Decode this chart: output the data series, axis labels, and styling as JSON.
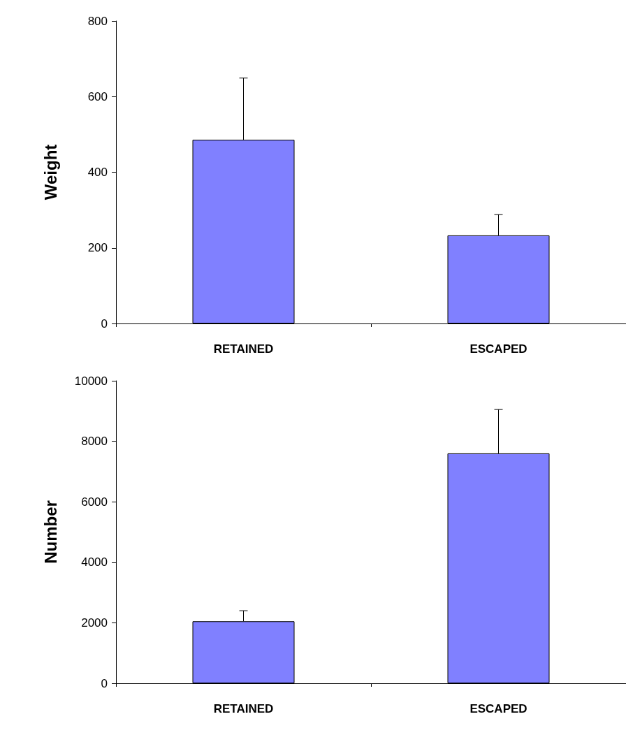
{
  "chart_data": [
    {
      "type": "bar",
      "ylabel": "Weight",
      "categories": [
        "RETAINED",
        "ESCAPED"
      ],
      "values": [
        486,
        233
      ],
      "errors": [
        [
          486,
          649
        ],
        [
          233,
          288
        ]
      ],
      "color": "#8080ff",
      "ylim": [
        0,
        800
      ],
      "yticks": [
        0,
        200,
        400,
        600,
        800
      ],
      "grid": false
    },
    {
      "type": "bar",
      "ylabel": "Number",
      "categories": [
        "RETAINED",
        "ESCAPED"
      ],
      "values": [
        2050,
        7600
      ],
      "errors": [
        [
          2050,
          2400
        ],
        [
          7600,
          9050
        ]
      ],
      "color": "#8080ff",
      "ylim": [
        0,
        10000
      ],
      "yticks": [
        0,
        2000,
        4000,
        6000,
        8000,
        10000
      ],
      "grid": false
    }
  ]
}
